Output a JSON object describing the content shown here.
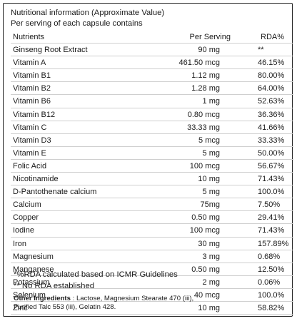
{
  "header": {
    "title": "Nutritional information (Approximate Value)",
    "subtitle": "Per serving of each capsule contains"
  },
  "table": {
    "columns": [
      "Nutrients",
      "Per Serving",
      "RDA%"
    ],
    "rows": [
      {
        "name": "Ginseng Root Extract",
        "serving": "90 mg",
        "rda": "**"
      },
      {
        "name": "Vitamin A",
        "serving": "461.50 mcg",
        "rda": "46.15%"
      },
      {
        "name": "Vitamin B1",
        "serving": "1.12 mg",
        "rda": "80.00%"
      },
      {
        "name": "Vitamin B2",
        "serving": "1.28 mg",
        "rda": "64.00%"
      },
      {
        "name": "Vitamin B6",
        "serving": "1 mg",
        "rda": "52.63%"
      },
      {
        "name": "Vitamin B12",
        "serving": "0.80 mcg",
        "rda": "36.36%"
      },
      {
        "name": "Vitamin C",
        "serving": "33.33 mg",
        "rda": "41.66%"
      },
      {
        "name": "Vitamin D3",
        "serving": "5 mcg",
        "rda": "33.33%"
      },
      {
        "name": "Vitamin E",
        "serving": "5 mg",
        "rda": "50.00%"
      },
      {
        "name": "Folic Acid",
        "serving": "100 mcg",
        "rda": "56.67%"
      },
      {
        "name": "Nicotinamide",
        "serving": "10 mg",
        "rda": "71.43%"
      },
      {
        "name": "D-Pantothenate calcium",
        "serving": "5 mg",
        "rda": "100.0%"
      },
      {
        "name": "Calcium",
        "serving": "75mg",
        "rda": "7.50%"
      },
      {
        "name": "Copper",
        "serving": "0.50 mg",
        "rda": "29.41%"
      },
      {
        "name": "Iodine",
        "serving": "100 mcg",
        "rda": "71.43%"
      },
      {
        "name": "Iron",
        "serving": "30 mg",
        "rda": "157.89%"
      },
      {
        "name": "Magnesium",
        "serving": "3 mg",
        "rda": "0.68%"
      },
      {
        "name": "Manganese",
        "serving": "0.50 mg",
        "rda": "12.50%"
      },
      {
        "name": "Potassium",
        "serving": "2 mg",
        "rda": "0.06%"
      },
      {
        "name": "Selenium",
        "serving": "40 mcg",
        "rda": "100.0%"
      },
      {
        "name": "Zinc",
        "serving": "10 mg",
        "rda": "58.82%"
      }
    ]
  },
  "footnotes": {
    "rda_note": "*%RDA calculated based on ICMR Guidelines",
    "no_rda_note": "** No RDA established"
  },
  "other_ingredients": {
    "label": "Other Ingredients",
    "text": " : Lactose, Magnesium Stearate 470 (iii),",
    "text2": "Purified Talc 553 (iii), Gelatin 428."
  }
}
